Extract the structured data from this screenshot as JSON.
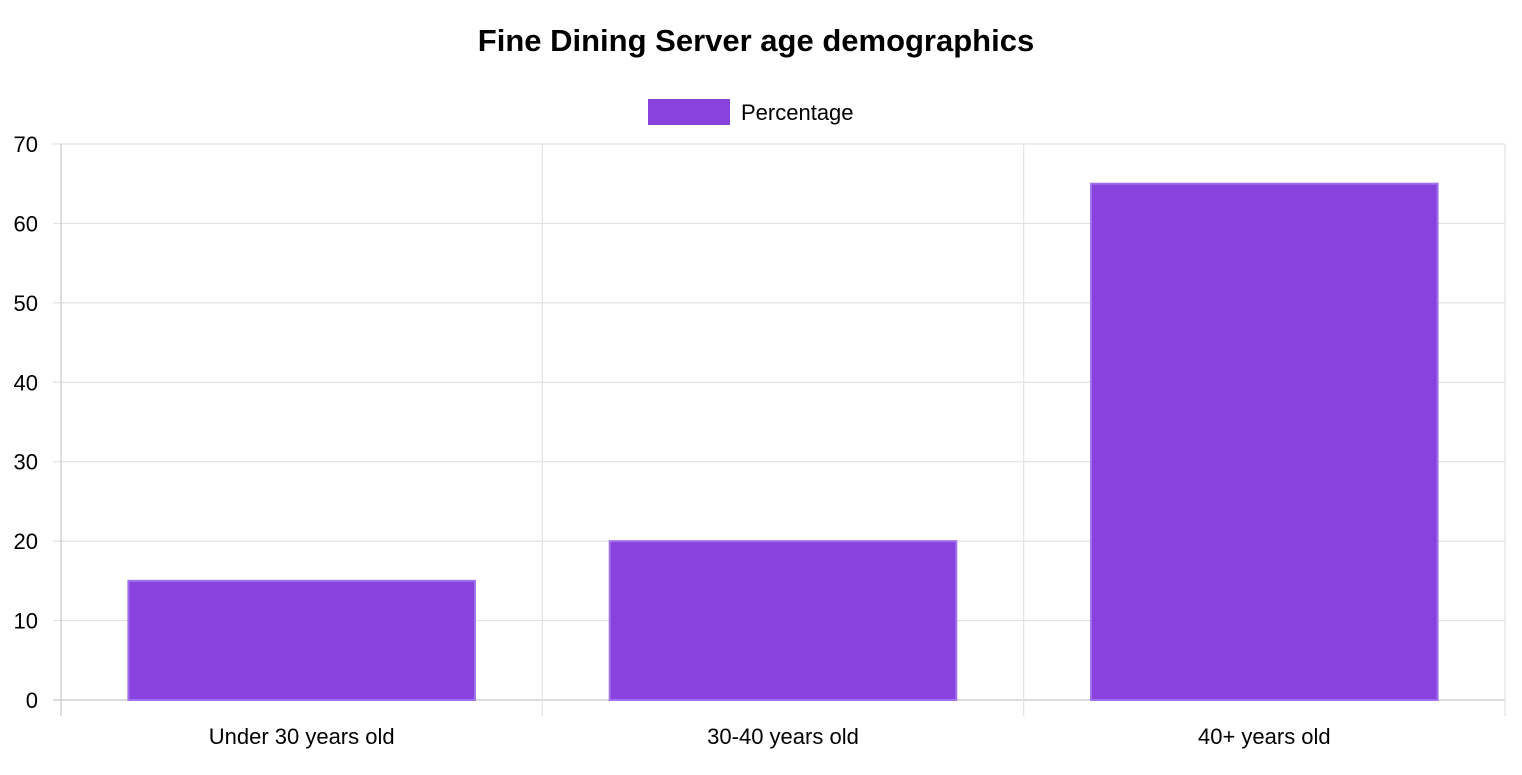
{
  "chart_data": {
    "type": "bar",
    "title": "Fine Dining Server age demographics",
    "xlabel": "",
    "ylabel": "",
    "categories": [
      "Under 30 years old",
      "30-40 years old",
      "40+ years old"
    ],
    "series": [
      {
        "name": "Percentage",
        "values": [
          15,
          20,
          65
        ],
        "color": "#8842dd"
      }
    ],
    "ylim": [
      0,
      70
    ],
    "yticks": [
      "0",
      "10",
      "20",
      "30",
      "40",
      "50",
      "60",
      "70"
    ],
    "grid": true,
    "legend_position": "top-center"
  }
}
